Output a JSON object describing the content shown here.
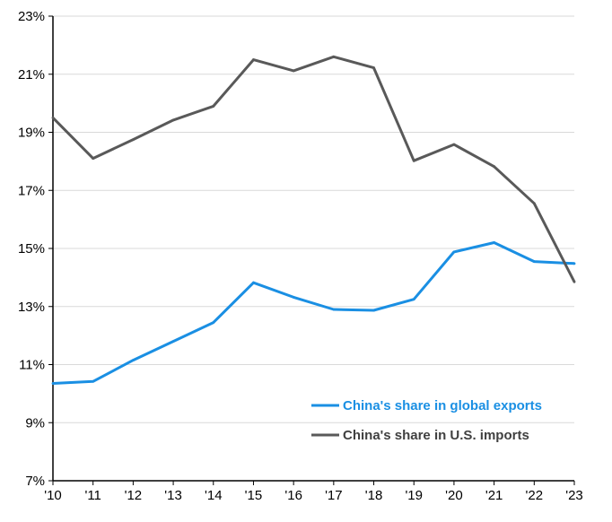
{
  "chart_data": {
    "type": "line",
    "title": "",
    "xlabel": "",
    "ylabel": "",
    "categories": [
      "'10",
      "'11",
      "'12",
      "'13",
      "'14",
      "'15",
      "'16",
      "'17",
      "'18",
      "'19",
      "'20",
      "'21",
      "'22",
      "'23"
    ],
    "ylim": [
      7,
      23
    ],
    "yticks": [
      7,
      9,
      11,
      13,
      15,
      17,
      19,
      21,
      23
    ],
    "ytick_labels": [
      "7%",
      "9%",
      "11%",
      "13%",
      "15%",
      "17%",
      "19%",
      "21%",
      "23%"
    ],
    "grid": true,
    "legend_position": "lower-right",
    "series": [
      {
        "name": "China's share in global exports",
        "color": "#1a8fe3",
        "values": [
          10.35,
          10.42,
          11.15,
          11.8,
          12.45,
          13.82,
          13.32,
          12.9,
          12.87,
          13.25,
          14.88,
          15.2,
          14.55,
          14.48
        ]
      },
      {
        "name": "China's share in U.S. imports",
        "color": "#595959",
        "values": [
          19.5,
          18.1,
          18.75,
          19.42,
          19.9,
          21.5,
          21.12,
          21.6,
          21.22,
          18.02,
          18.58,
          17.82,
          16.55,
          13.85
        ]
      }
    ]
  }
}
